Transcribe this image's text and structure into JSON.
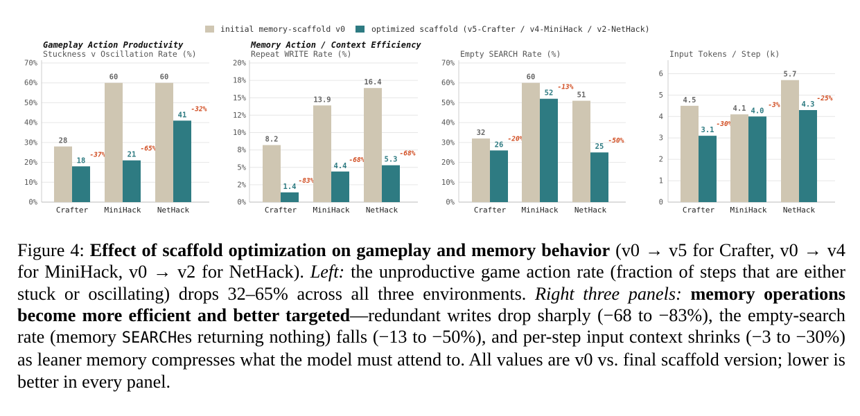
{
  "legend": {
    "initial": "initial memory-scaffold v0",
    "optimized": "optimized scaffold (v5-Crafter / v4-MiniHack / v2-NetHack)",
    "colors": {
      "initial": "#cfc6b2",
      "optimized": "#2e7b82"
    }
  },
  "group_titles": {
    "gameplay": "Gameplay Action Productivity",
    "memory": "Memory Action / Context Efficiency"
  },
  "chart_data": [
    {
      "type": "bar",
      "title": "Stuckness v Oscillation Rate (%)",
      "categories": [
        "Crafter",
        "MiniHack",
        "NetHack"
      ],
      "yticks": [
        "0%",
        "10%",
        "20%",
        "30%",
        "40%",
        "50%",
        "60%",
        "70%"
      ],
      "ylim": [
        0,
        70
      ],
      "series": [
        {
          "name": "initial memory-scaffold v0",
          "values": [
            28,
            60,
            60
          ],
          "labels": [
            "28",
            "60",
            "60"
          ]
        },
        {
          "name": "optimized scaffold (v5-Crafter / v4-MiniHack / v2-NetHack)",
          "values": [
            18,
            21,
            41
          ],
          "labels": [
            "18",
            "21",
            "41"
          ]
        }
      ],
      "annotations": [
        "-37%",
        "-65%",
        "-32%"
      ],
      "grid": true
    },
    {
      "type": "bar",
      "title": "Repeat WRITE Rate (%)",
      "categories": [
        "Crafter",
        "MiniHack",
        "NetHack"
      ],
      "yticks": [
        "0%",
        "2%",
        "5%",
        "8%",
        "10%",
        "12%",
        "15%",
        "18%",
        "20%"
      ],
      "ytick_values": [
        0,
        2.5,
        5,
        7.5,
        10,
        12.5,
        15,
        17.5,
        20
      ],
      "ylim": [
        0,
        20
      ],
      "series": [
        {
          "name": "initial memory-scaffold v0",
          "values": [
            8.2,
            13.9,
            16.4
          ],
          "labels": [
            "8.2",
            "13.9",
            "16.4"
          ]
        },
        {
          "name": "optimized scaffold (v5-Crafter / v4-MiniHack / v2-NetHack)",
          "values": [
            1.4,
            4.4,
            5.3
          ],
          "labels": [
            "1.4",
            "4.4",
            "5.3"
          ]
        }
      ],
      "annotations": [
        "-83%",
        "-68%",
        "-68%"
      ],
      "grid": true
    },
    {
      "type": "bar",
      "title": "Empty SEARCH Rate (%)",
      "categories": [
        "Crafter",
        "MiniHack",
        "NetHack"
      ],
      "yticks": [
        "0%",
        "10%",
        "20%",
        "30%",
        "40%",
        "50%",
        "60%",
        "70%"
      ],
      "ylim": [
        0,
        70
      ],
      "series": [
        {
          "name": "initial memory-scaffold v0",
          "values": [
            32,
            60,
            51
          ],
          "labels": [
            "32",
            "60",
            "51"
          ]
        },
        {
          "name": "optimized scaffold (v5-Crafter / v4-MiniHack / v2-NetHack)",
          "values": [
            26,
            52,
            25
          ],
          "labels": [
            "26",
            "52",
            "25"
          ]
        }
      ],
      "annotations": [
        "-20%",
        "-13%",
        "-50%"
      ],
      "grid": true
    },
    {
      "type": "bar",
      "title": "Input Tokens / Step (k)",
      "categories": [
        "Crafter",
        "MiniHack",
        "NetHack"
      ],
      "yticks": [
        "0",
        "1",
        "2",
        "3",
        "4",
        "5",
        "6"
      ],
      "ylim": [
        0,
        6.5
      ],
      "series": [
        {
          "name": "initial memory-scaffold v0",
          "values": [
            4.5,
            4.1,
            5.7
          ],
          "labels": [
            "4.5",
            "4.1",
            "5.7"
          ]
        },
        {
          "name": "optimized scaffold (v5-Crafter / v4-MiniHack / v2-NetHack)",
          "values": [
            3.1,
            4.0,
            4.3
          ],
          "labels": [
            "3.1",
            "4.0",
            "4.3"
          ]
        }
      ],
      "annotations": [
        "-30%",
        "-3%",
        "-25%"
      ],
      "grid": true
    }
  ],
  "caption": {
    "label": "Figure 4:",
    "bold_title": "Effect of scaffold optimization on gameplay and memory behavior",
    "text1": " (v0 → v5 for Crafter, v0 → v4 for MiniHack, v0 → v2 for NetHack). ",
    "left_label": "Left:",
    "text2": " the unproductive game action rate (fraction of steps that are either stuck or oscillating) drops 32–65% across all three environments. ",
    "right_label": "Right three panels:",
    "bold_mid": "memory operations become more efficient and better targeted",
    "text3": "—redundant writes drop sharply (−68 to −83%), the empty-search rate (memory ",
    "mono_word": "SEARCH",
    "text4": "es returning nothing) falls (−13 to −50%), and per-step input context shrinks (−3 to −30%) as leaner memory compresses what the model must attend to. All values are v0 vs. final scaffold version; lower is better in every panel."
  }
}
